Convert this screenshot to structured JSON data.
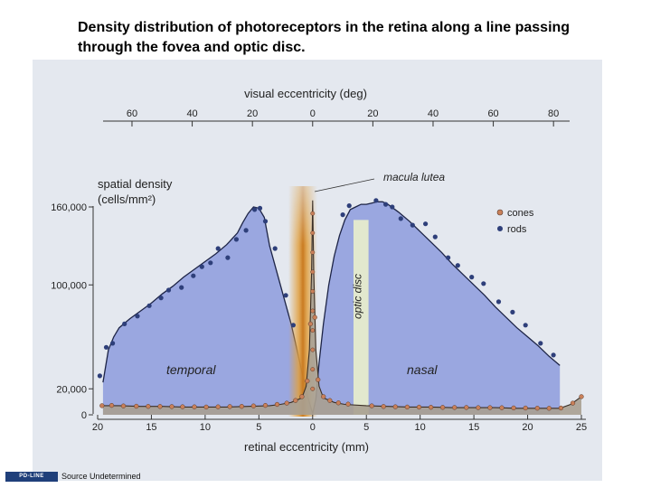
{
  "page": {
    "title": "Density distribution of photoreceptors in the retina along a line passing through the fovea and optic disc.",
    "footer_logo": "PD-LINE",
    "footer_source": "Source Undetermined"
  },
  "chart_data": {
    "type": "area",
    "top_axis": {
      "label": "visual eccentricity (deg)",
      "ticks": [
        "60",
        "40",
        "20",
        "0",
        "20",
        "40",
        "60",
        "80"
      ],
      "tick_values": [
        -60,
        -40,
        -20,
        0,
        20,
        40,
        60,
        80
      ]
    },
    "xlabel": "retinal eccentricity (mm)",
    "x_ticks": [
      "20",
      "15",
      "10",
      "5",
      "0",
      "5",
      "10",
      "15",
      "20",
      "25"
    ],
    "x_tick_values": [
      -20,
      -15,
      -10,
      -5,
      0,
      5,
      10,
      15,
      20,
      25
    ],
    "xlim": [
      -20,
      25
    ],
    "ylabel_line1": "spatial density",
    "ylabel_line2": "(cells/mm²)",
    "y_ticks": [
      "160,000",
      "100,000",
      "20,000",
      "0"
    ],
    "y_tick_values": [
      160000,
      100000,
      20000,
      0
    ],
    "ylim": [
      0,
      160000
    ],
    "region_labels": {
      "temporal": "temporal",
      "nasal": "nasal",
      "optic_disc": "optic disc"
    },
    "annotation": "macula lutea",
    "optic_disc_range_mm": [
      3.8,
      5.2
    ],
    "legend": {
      "position": "right",
      "items": [
        {
          "name": "cones",
          "color": "#c9805a"
        },
        {
          "name": "rods",
          "color": "#2e3f7a"
        }
      ]
    },
    "colors": {
      "rod_fill": "#9aa7e0",
      "cone_fill": "#a9a091",
      "disc": "#e6ebcc",
      "macula": "#e0a040"
    },
    "series": [
      {
        "name": "rods",
        "x": [
          -19.5,
          -19,
          -18.5,
          -18,
          -17,
          -16,
          -15,
          -14,
          -13,
          -12,
          -11,
          -10,
          -9,
          -8,
          -7,
          -6.5,
          -6,
          -5.5,
          -5,
          -4.5,
          -4,
          -3,
          -2,
          -1.5,
          -1,
          -0.5,
          0,
          0.3,
          0.6,
          1,
          1.5,
          2,
          2.5,
          3,
          3.5,
          4,
          4.5,
          5,
          5.5,
          6,
          6.5,
          7,
          8,
          9,
          10,
          11,
          12,
          13,
          14,
          15,
          16,
          17,
          18,
          19,
          20,
          21,
          22,
          23
        ],
        "values": [
          25000,
          50000,
          60000,
          67000,
          74000,
          80000,
          86000,
          93000,
          99000,
          106000,
          112000,
          118000,
          124000,
          131000,
          140000,
          148000,
          155000,
          160000,
          159000,
          152000,
          130000,
          100000,
          70000,
          52000,
          33000,
          15000,
          1000,
          12000,
          40000,
          70000,
          100000,
          122000,
          138000,
          150000,
          158000,
          160000,
          162000,
          162000,
          163000,
          164000,
          164000,
          162000,
          156000,
          149000,
          141000,
          133000,
          125000,
          116000,
          108000,
          100000,
          92000,
          83000,
          75000,
          67000,
          60000,
          53000,
          45000,
          38000
        ]
      },
      {
        "name": "cones",
        "x": [
          -19.5,
          -18,
          -16,
          -14,
          -12,
          -10,
          -8,
          -6,
          -4,
          -3,
          -2,
          -1,
          -0.6,
          -0.3,
          -0.1,
          0,
          0.1,
          0.3,
          0.6,
          1,
          2,
          3,
          5,
          7,
          9,
          11,
          13,
          15,
          17,
          19,
          21,
          23,
          24,
          25
        ],
        "values": [
          7000,
          7000,
          6500,
          6500,
          6000,
          6000,
          6000,
          6500,
          7000,
          8000,
          9500,
          13000,
          22000,
          50000,
          110000,
          165000,
          110000,
          50000,
          22000,
          13000,
          9500,
          8000,
          7000,
          6500,
          6000,
          6000,
          5500,
          5500,
          5500,
          5000,
          5000,
          5000,
          8000,
          14000
        ]
      },
      {
        "name": "rods (samples)",
        "x": [
          -19.8,
          -19.2,
          -18.6,
          -17.5,
          -16.3,
          -15.2,
          -14.1,
          -13.4,
          -12.2,
          -11.1,
          -10.3,
          -9.5,
          -8.8,
          -7.9,
          -7.1,
          -6.2,
          -5.4,
          -4.9,
          -4.4,
          -3.5,
          -2.5,
          -1.8,
          2.8,
          3.4,
          5.0,
          5.9,
          6.8,
          7.4,
          8.2,
          9.3,
          10.5,
          11.4,
          12.6,
          13.5,
          14.8,
          15.9,
          17.3,
          18.6,
          19.8,
          21.2,
          22.4
        ],
        "values": [
          30000,
          52000,
          55000,
          70000,
          76000,
          84000,
          90000,
          96000,
          98000,
          107000,
          114000,
          117000,
          128000,
          121000,
          135000,
          142000,
          158000,
          159000,
          149000,
          128000,
          92000,
          69000,
          154000,
          161000,
          158000,
          165000,
          162000,
          160000,
          151000,
          146000,
          147000,
          137000,
          121000,
          115000,
          106000,
          101000,
          87000,
          79000,
          69000,
          55000,
          46000
        ]
      },
      {
        "name": "cones (samples)",
        "x": [
          -19.6,
          -18.7,
          -17.6,
          -16.4,
          -15.3,
          -14.2,
          -13.1,
          -12.1,
          -11.0,
          -9.9,
          -8.8,
          -7.7,
          -6.6,
          -5.5,
          -4.4,
          -3.3,
          -2.4,
          -1.6,
          -1.0,
          -0.5,
          -0.2,
          0.2,
          0.5,
          1.0,
          1.6,
          2.4,
          3.3,
          4.4,
          5.5,
          6.6,
          7.7,
          8.8,
          9.9,
          11.0,
          12.1,
          13.2,
          14.3,
          15.4,
          16.5,
          17.6,
          18.7,
          19.8,
          20.9,
          22.0,
          23.1,
          24.2,
          25.0
        ],
        "values": [
          7000,
          7200,
          6800,
          6600,
          6500,
          6400,
          6300,
          6200,
          6100,
          6000,
          6100,
          6300,
          6500,
          6800,
          7200,
          8000,
          9000,
          11000,
          14000,
          26000,
          70000,
          75000,
          27000,
          14000,
          11000,
          9200,
          8200,
          7400,
          6900,
          6400,
          6200,
          6000,
          5900,
          5800,
          5700,
          5600,
          5600,
          5500,
          5500,
          5400,
          5300,
          5200,
          5100,
          5000,
          5200,
          9000,
          14000
        ]
      }
    ]
  }
}
